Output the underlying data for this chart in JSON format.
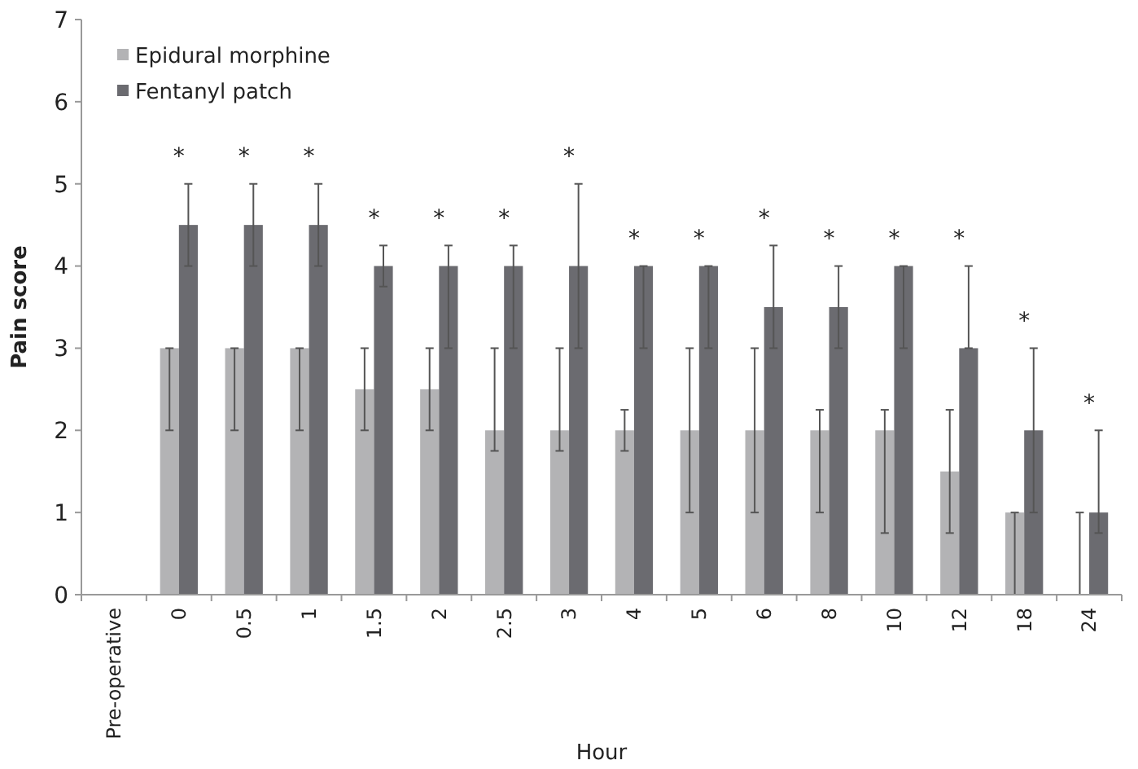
{
  "chart_data": {
    "type": "bar",
    "xlabel": "Hour",
    "ylabel": "Pain score",
    "categories": [
      "Pre-operative",
      "0",
      "0.5",
      "1",
      "1.5",
      "2",
      "2.5",
      "3",
      "4",
      "5",
      "6",
      "8",
      "10",
      "12",
      "18",
      "24"
    ],
    "series": [
      {
        "name": "Epidural morphine",
        "color": "#b3b3b5",
        "values": [
          0,
          3,
          3,
          3,
          2.5,
          2.5,
          2,
          2,
          2,
          2,
          2,
          2,
          2,
          1.5,
          1,
          0
        ],
        "errors": [
          null,
          [
            2,
            3
          ],
          [
            2,
            3
          ],
          [
            2,
            3
          ],
          [
            2,
            3
          ],
          [
            2,
            3
          ],
          [
            1.75,
            3
          ],
          [
            1.75,
            3
          ],
          [
            1.75,
            2.25
          ],
          [
            1,
            3
          ],
          [
            1,
            3
          ],
          [
            1,
            2.25
          ],
          [
            0.75,
            2.25
          ],
          [
            0.75,
            2.25
          ],
          [
            0,
            1
          ],
          [
            0,
            1
          ]
        ]
      },
      {
        "name": "Fentanyl patch",
        "color": "#6b6b70",
        "values": [
          0,
          4.5,
          4.5,
          4.5,
          4,
          4,
          4,
          4,
          4,
          4,
          3.5,
          3.5,
          4,
          3,
          2,
          1
        ],
        "errors": [
          null,
          [
            4,
            5
          ],
          [
            4,
            5
          ],
          [
            4,
            5
          ],
          [
            3.75,
            4.25
          ],
          [
            3,
            4.25
          ],
          [
            3,
            4.25
          ],
          [
            3,
            5
          ],
          [
            3,
            4
          ],
          [
            3,
            4
          ],
          [
            3,
            4.25
          ],
          [
            3,
            4
          ],
          [
            3,
            4
          ],
          [
            3,
            4
          ],
          [
            1,
            3
          ],
          [
            0.75,
            2
          ]
        ]
      }
    ],
    "ylim": [
      0,
      7
    ],
    "yticks": [
      0,
      1,
      2,
      3,
      4,
      5,
      6,
      7
    ],
    "grid": false,
    "legend": "top left",
    "annotations": [
      "*",
      "*",
      "*",
      "*",
      "*",
      "*",
      "*",
      "*",
      "*",
      "*",
      "*",
      "*",
      "*",
      "*",
      "*"
    ]
  }
}
